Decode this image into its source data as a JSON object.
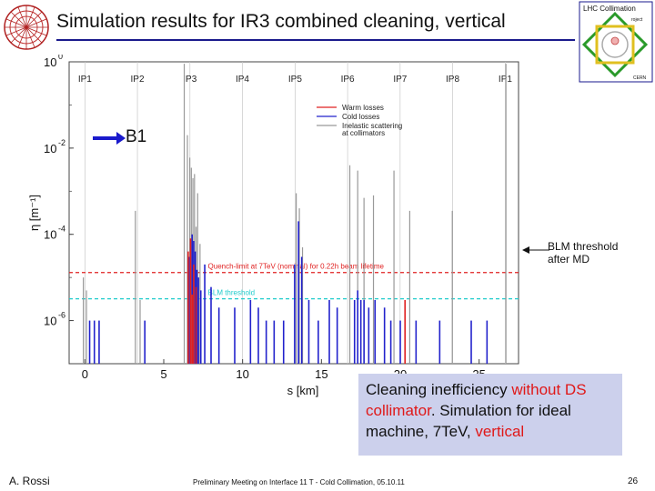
{
  "slide": {
    "title": "Simulation results for IR3 combined cleaning, vertical",
    "beam_label": "B1",
    "blm_note_line1": "BLM threshold",
    "blm_note_line2": "after MD",
    "callout": {
      "part1": "Cleaning inefficiency ",
      "part2": "without DS collimator",
      "part3": ". Simulation for ideal machine, 7TeV, ",
      "part4": "vertical"
    },
    "footer_left": "A. Rossi",
    "footer_mid": "Preliminary Meeting on Interface 11 T - Cold Collimation, 05.10.11",
    "footer_right": "26",
    "logo_text": {
      "lhc": "LHC Collimation",
      "project": "roject",
      "cern": "CERN"
    }
  },
  "colors": {
    "warm": "#e02020",
    "cold": "#2222cc",
    "inelastic": "#999999",
    "quench_line": "#e02020",
    "blm_line": "#22cccc",
    "arrow": "#1a1acc"
  },
  "chart_data": {
    "type": "bar",
    "xlabel": "s [km]",
    "ylabel": "η [m⁻¹]",
    "xlim": [
      -1,
      27.5
    ],
    "ylim": [
      1e-07,
      1
    ],
    "yscale": "log",
    "xticks": [
      0,
      5,
      10,
      15,
      20,
      25
    ],
    "yticks": [
      {
        "value": 1,
        "label": "10",
        "exp": "0"
      },
      {
        "value": 0.01,
        "label": "10",
        "exp": "-2"
      },
      {
        "value": 0.0001,
        "label": "10",
        "exp": "-4"
      },
      {
        "value": 1e-06,
        "label": "10",
        "exp": "-6"
      }
    ],
    "ip_labels": [
      {
        "name": "IP1",
        "s": 0
      },
      {
        "name": "IP2",
        "s": 3.33
      },
      {
        "name": "IP3",
        "s": 6.66
      },
      {
        "name": "IP4",
        "s": 9.99
      },
      {
        "name": "IP5",
        "s": 13.33
      },
      {
        "name": "IP6",
        "s": 16.66
      },
      {
        "name": "IP7",
        "s": 19.99
      },
      {
        "name": "IP8",
        "s": 23.32
      },
      {
        "name": "IP1",
        "s": 26.66
      }
    ],
    "legend": {
      "placement": "top-right",
      "entries": [
        "Warm losses",
        "Cold losses",
        "Inelastic scattering\nat collimators"
      ]
    },
    "hlines": [
      {
        "label": "Quench-limit at 7TeV (nominal) for 0.22h beam lifetime",
        "value": 1.3e-05
      },
      {
        "label": "BLM threshold",
        "value": 3.2e-06
      }
    ],
    "series": [
      {
        "name": "Inelastic scattering at collimators",
        "points": [
          [
            -0.1,
            1e-05
          ],
          [
            0.1,
            5e-06
          ],
          [
            3.2,
            0.00035
          ],
          [
            3.5,
            3e-06
          ],
          [
            6.3,
            0.9
          ],
          [
            6.5,
            0.02
          ],
          [
            6.65,
            0.006
          ],
          [
            6.75,
            0.0035
          ],
          [
            6.85,
            0.002
          ],
          [
            6.95,
            0.0025
          ],
          [
            7.05,
            0.00015
          ],
          [
            7.15,
            0.0009
          ],
          [
            7.3,
            6e-05
          ],
          [
            13.4,
            0.0009
          ],
          [
            13.6,
            0.0004
          ],
          [
            13.8,
            5e-05
          ],
          [
            16.8,
            0.004
          ],
          [
            17.3,
            0.003
          ],
          [
            17.7,
            0.0007
          ],
          [
            18.3,
            0.0008
          ],
          [
            19.6,
            0.003
          ],
          [
            20.6,
            0.00035
          ],
          [
            23.3,
            0.00035
          ],
          [
            26.7,
            0.9
          ]
        ]
      },
      {
        "name": "Cold losses",
        "points": [
          [
            0.3,
            1e-06
          ],
          [
            0.6,
            1e-06
          ],
          [
            0.9,
            1e-06
          ],
          [
            3.8,
            1e-06
          ],
          [
            6.6,
            3e-05
          ],
          [
            6.8,
            0.0001
          ],
          [
            6.9,
            7e-05
          ],
          [
            7.0,
            4e-05
          ],
          [
            7.1,
            1.5e-05
          ],
          [
            7.2,
            1e-05
          ],
          [
            7.35,
            5e-06
          ],
          [
            7.6,
            2e-05
          ],
          [
            8.0,
            6e-06
          ],
          [
            8.5,
            2e-06
          ],
          [
            9.5,
            2e-06
          ],
          [
            10.5,
            3e-06
          ],
          [
            11.0,
            2e-06
          ],
          [
            11.5,
            1e-06
          ],
          [
            12.0,
            1e-06
          ],
          [
            12.6,
            1e-06
          ],
          [
            13.3,
            2e-05
          ],
          [
            13.55,
            0.0002
          ],
          [
            13.75,
            3e-05
          ],
          [
            14.2,
            3e-06
          ],
          [
            14.8,
            1e-06
          ],
          [
            15.5,
            3e-06
          ],
          [
            16.0,
            2e-06
          ],
          [
            17.1,
            3e-06
          ],
          [
            17.3,
            5e-06
          ],
          [
            17.5,
            3e-06
          ],
          [
            17.7,
            3e-06
          ],
          [
            18.0,
            2e-06
          ],
          [
            18.4,
            3e-06
          ],
          [
            19.0,
            2e-06
          ],
          [
            19.4,
            1e-06
          ],
          [
            20.0,
            1e-06
          ],
          [
            21.0,
            1e-06
          ],
          [
            22.5,
            1e-06
          ],
          [
            24.5,
            1e-06
          ],
          [
            25.5,
            1e-06
          ]
        ]
      },
      {
        "name": "Warm losses",
        "points": [
          [
            6.55,
            4e-05
          ],
          [
            6.7,
            8e-05
          ],
          [
            6.8,
            4e-06
          ],
          [
            6.9,
            2e-05
          ],
          [
            7.05,
            6e-06
          ],
          [
            20.3,
            3e-06
          ]
        ]
      }
    ]
  }
}
